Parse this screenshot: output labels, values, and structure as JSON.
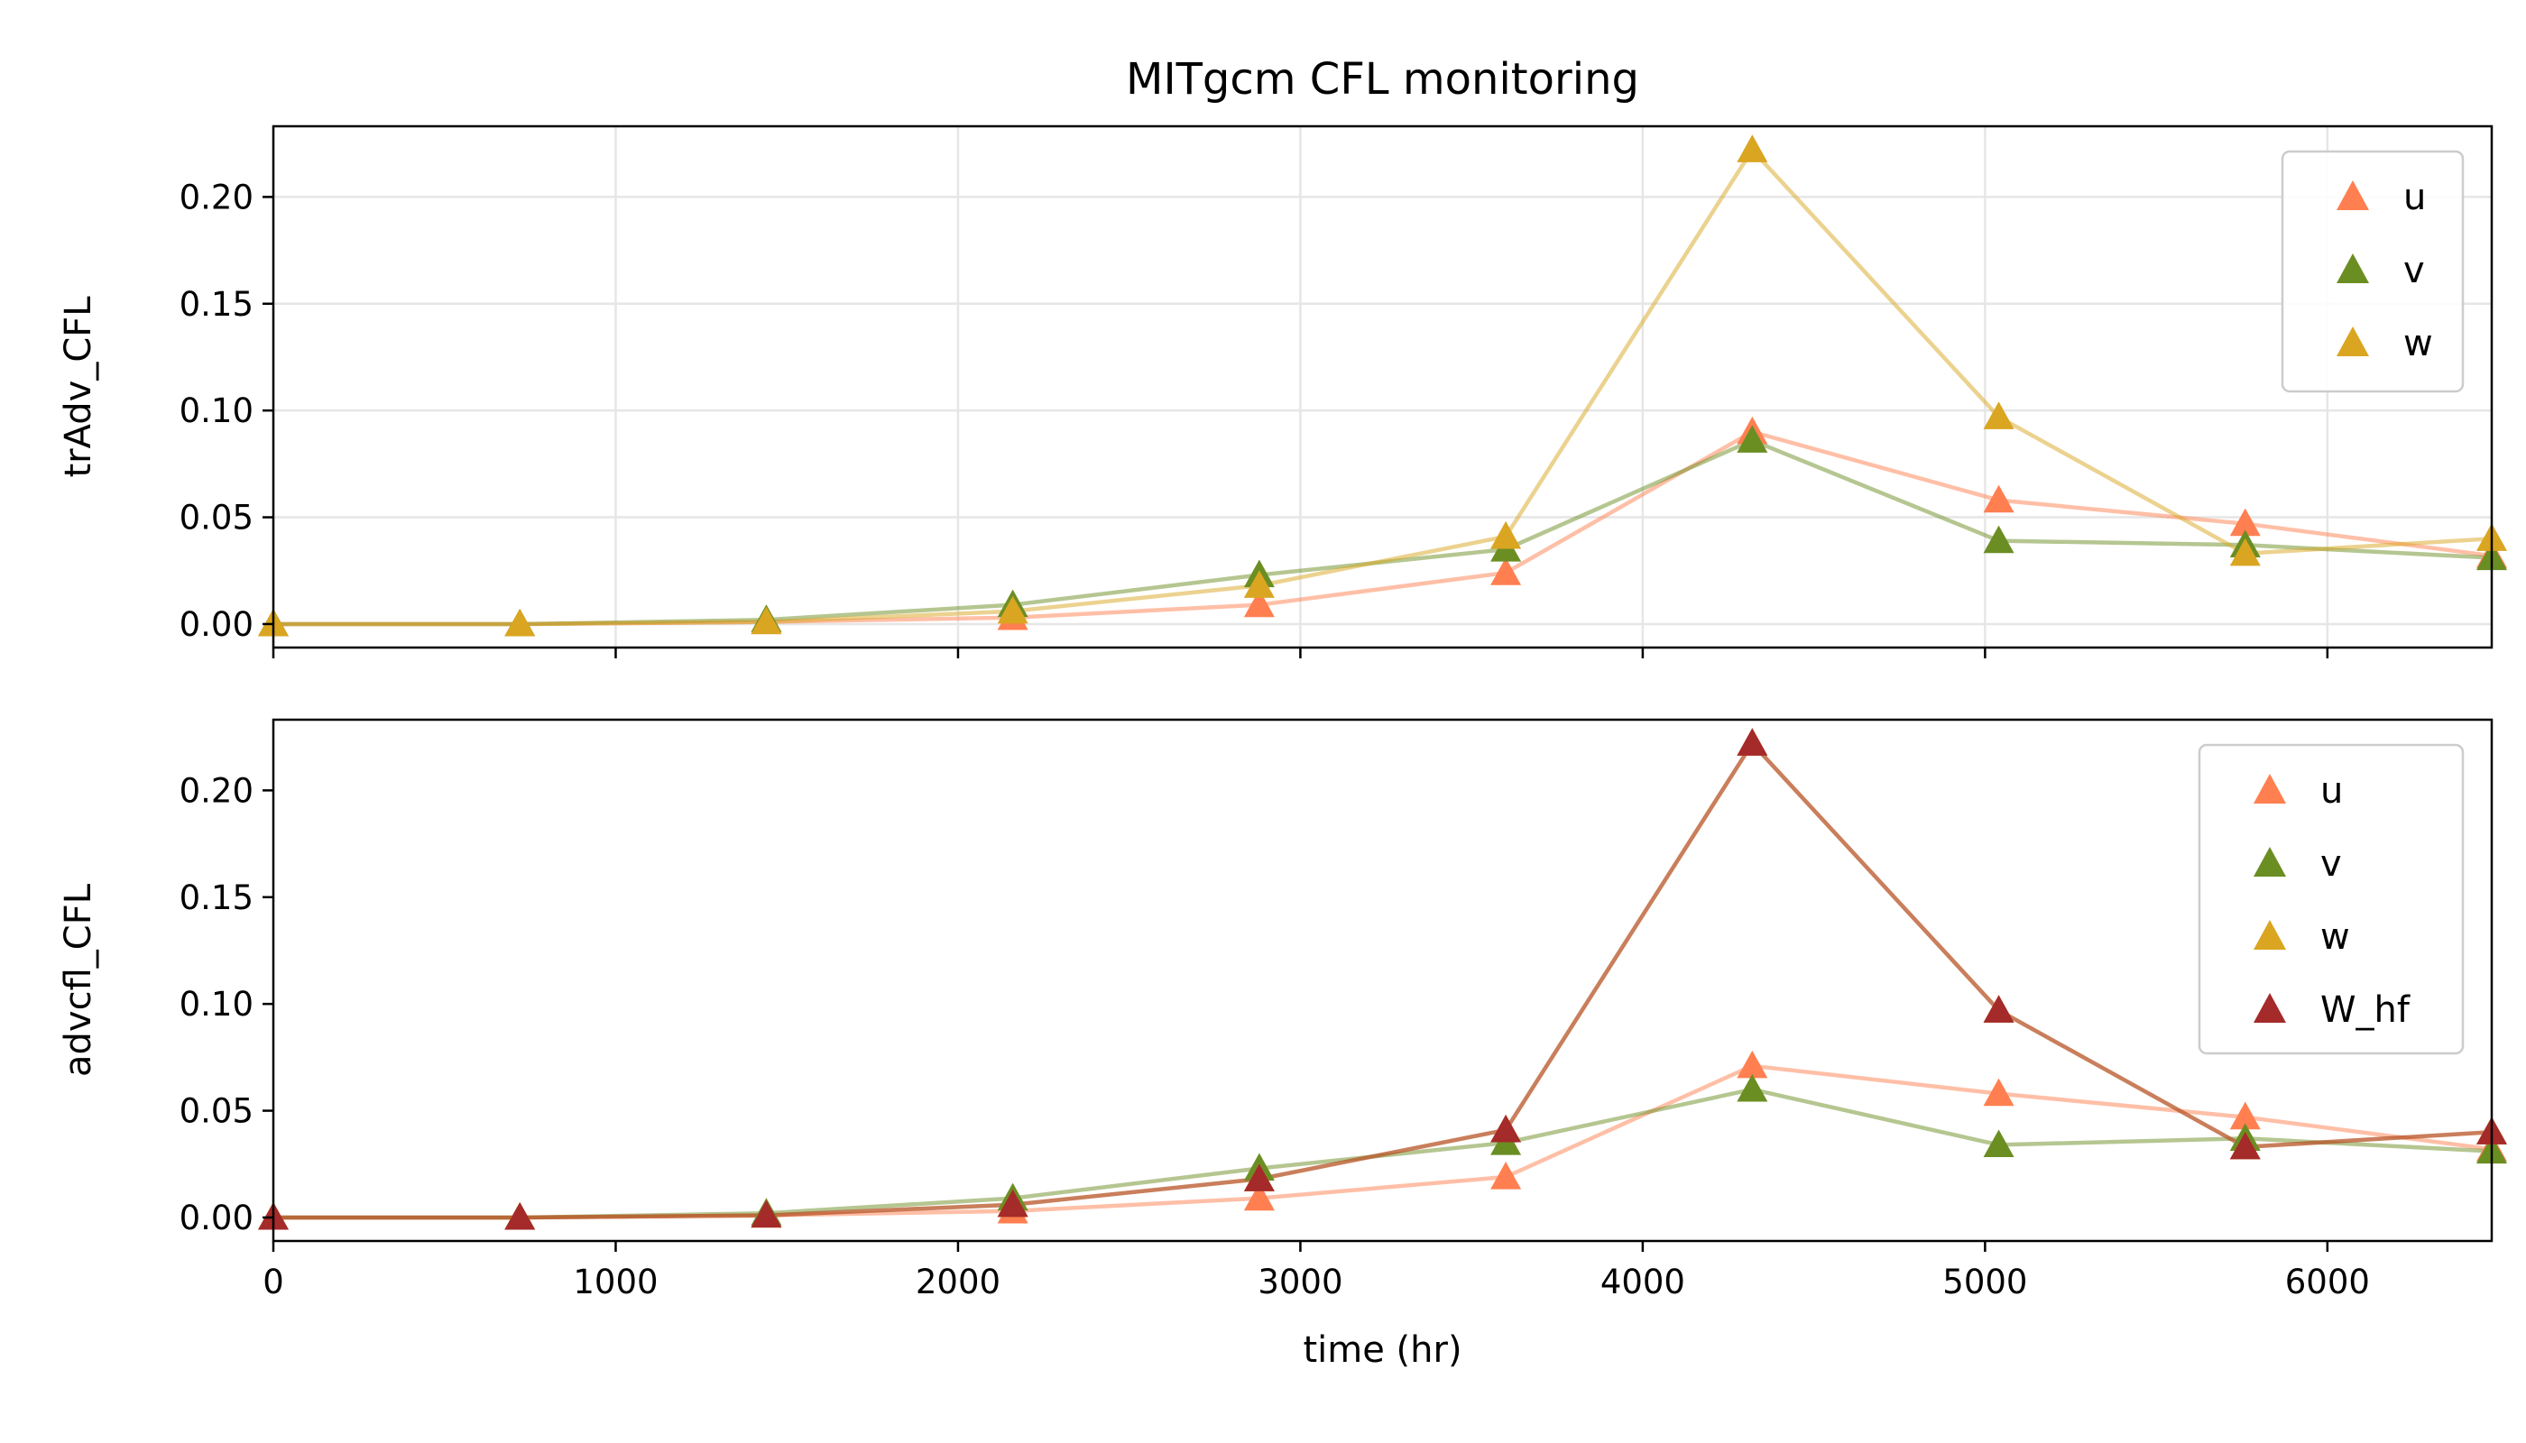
{
  "chart_data": [
    {
      "type": "line",
      "title": "MITgcm CFL monitoring",
      "ylabel": "trAdv_CFL",
      "xlabel": "",
      "xlim": [
        0,
        6480
      ],
      "ylim": [
        -0.011,
        0.2331
      ],
      "xticks": [
        0,
        1000,
        2000,
        3000,
        4000,
        5000,
        6000
      ],
      "yticks": [
        0.0,
        0.05,
        0.1,
        0.15,
        0.2
      ],
      "ytick_labels": [
        "0.00",
        "0.05",
        "0.10",
        "0.15",
        "0.20"
      ],
      "show_xtick_labels": false,
      "grid": true,
      "legend_position": "top-right",
      "x": [
        0,
        720,
        1440,
        2160,
        2880,
        3600,
        4320,
        5040,
        5760,
        6480
      ],
      "series": [
        {
          "name": "u",
          "color": "#ff7f50",
          "values": [
            0.0,
            0.0,
            0.001,
            0.003,
            0.009,
            0.024,
            0.09,
            0.058,
            0.047,
            0.032
          ]
        },
        {
          "name": "v",
          "color": "#6b8e23",
          "values": [
            0.0,
            0.0,
            0.002,
            0.009,
            0.023,
            0.035,
            0.086,
            0.039,
            0.037,
            0.031
          ]
        },
        {
          "name": "w",
          "color": "#daa520",
          "values": [
            0.0,
            0.0,
            0.001,
            0.006,
            0.018,
            0.041,
            0.222,
            0.097,
            0.033,
            0.04
          ]
        }
      ]
    },
    {
      "type": "line",
      "title": "",
      "ylabel": "advcfl_CFL",
      "xlabel": "time (hr)",
      "xlim": [
        0,
        6480
      ],
      "ylim": [
        -0.011,
        0.2331
      ],
      "xticks": [
        0,
        1000,
        2000,
        3000,
        4000,
        5000,
        6000
      ],
      "xtick_labels": [
        "0",
        "1000",
        "2000",
        "3000",
        "4000",
        "5000",
        "6000"
      ],
      "yticks": [
        0.0,
        0.05,
        0.1,
        0.15,
        0.2
      ],
      "ytick_labels": [
        "0.00",
        "0.05",
        "0.10",
        "0.15",
        "0.20"
      ],
      "show_xtick_labels": true,
      "grid": false,
      "legend_position": "top-right",
      "x": [
        0,
        720,
        1440,
        2160,
        2880,
        3600,
        4320,
        5040,
        5760,
        6480
      ],
      "series": [
        {
          "name": "u",
          "color": "#ff7f50",
          "values": [
            0.0,
            0.0,
            0.001,
            0.003,
            0.009,
            0.019,
            0.071,
            0.058,
            0.047,
            0.032
          ]
        },
        {
          "name": "v",
          "color": "#6b8e23",
          "values": [
            0.0,
            0.0,
            0.002,
            0.009,
            0.023,
            0.035,
            0.06,
            0.034,
            0.037,
            0.031
          ]
        },
        {
          "name": "w",
          "color": "#daa520",
          "values": [
            0.0,
            0.0,
            0.001,
            0.006,
            0.018,
            0.041,
            0.222,
            0.097,
            0.033,
            0.04
          ]
        },
        {
          "name": "W_hf",
          "color": "#a52a2a",
          "values": [
            0.0,
            0.0,
            0.001,
            0.006,
            0.018,
            0.041,
            0.222,
            0.097,
            0.033,
            0.04
          ]
        }
      ]
    }
  ]
}
